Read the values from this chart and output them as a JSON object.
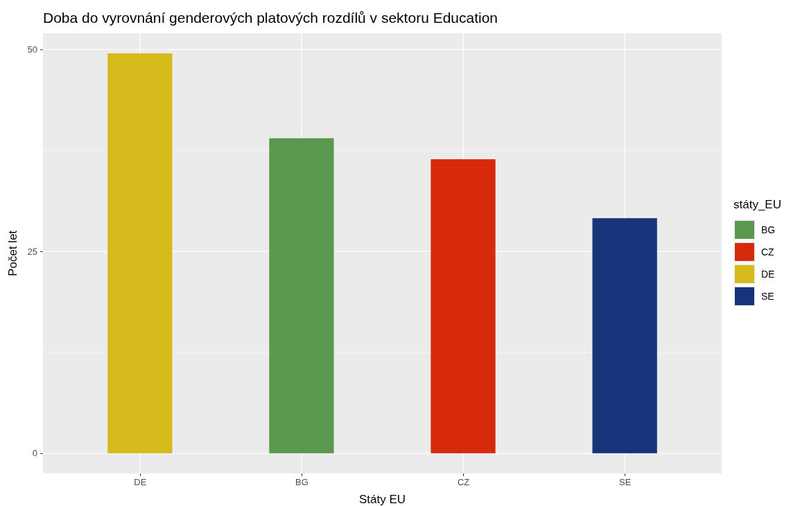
{
  "chart_data": {
    "type": "bar",
    "title": "Doba do vyrovnání genderových platových rozdílů v sektoru Education",
    "xlabel": "Státy EU",
    "ylabel": "Počet let",
    "legend_title": "státy_EU",
    "categories": [
      "DE",
      "BG",
      "CZ",
      "SE"
    ],
    "series": [
      {
        "name": "BG",
        "color": "#5b984f",
        "values": [
          null,
          39.0,
          null,
          null
        ]
      },
      {
        "name": "CZ",
        "color": "#d7290c",
        "values": [
          null,
          null,
          36.4,
          null
        ]
      },
      {
        "name": "DE",
        "color": "#d6b91b",
        "values": [
          49.5,
          null,
          null,
          null
        ]
      },
      {
        "name": "SE",
        "color": "#17347a",
        "values": [
          null,
          null,
          null,
          29.1
        ]
      }
    ],
    "ylim": [
      -2.5,
      52
    ],
    "yticks": [
      0,
      {
        "value": 12.5,
        "label": null
      },
      25,
      {
        "value": 37.5,
        "label": null
      },
      50
    ],
    "grid": true,
    "legend": "right"
  }
}
